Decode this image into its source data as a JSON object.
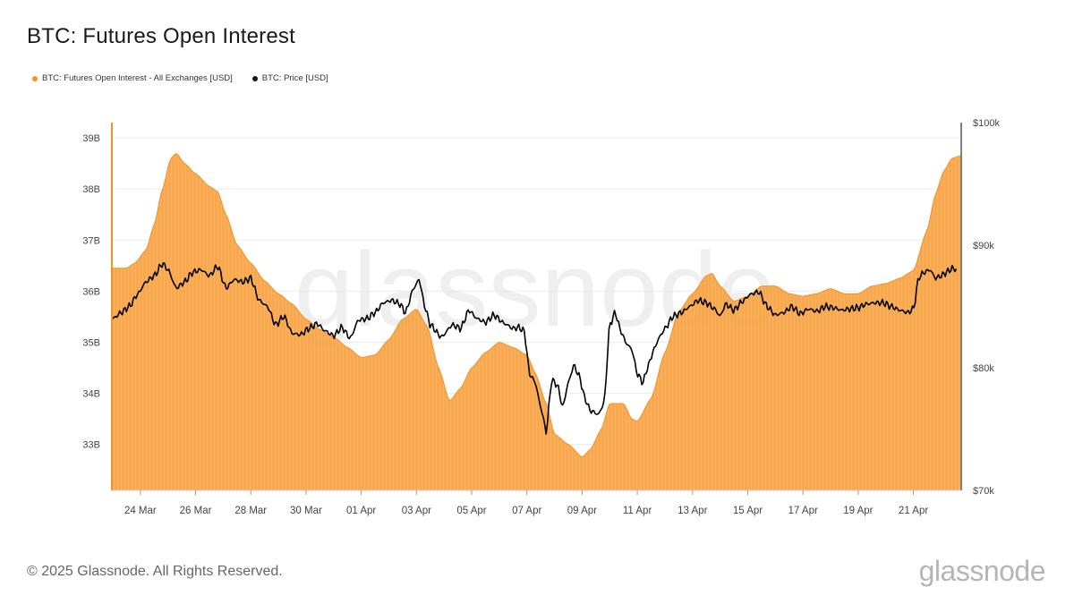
{
  "title": "BTC: Futures Open Interest",
  "legend": {
    "oi_label": "BTC: Futures Open Interest - All Exchanges [USD]",
    "price_label": "BTC: Price [USD]"
  },
  "footer": {
    "copyright": "© 2025 Glassnode. All Rights Reserved.",
    "logo": "glassnode"
  },
  "watermark": "glassnode",
  "colors": {
    "oi": "#f7a23e",
    "oi_edge": "#ef9228",
    "price": "#000000",
    "grid": "#ececec"
  },
  "chart_data": {
    "type": "area",
    "x_unit": "days",
    "x_start_label": "2025-03-23",
    "xlim": [
      0,
      30.7
    ],
    "x_ticks": [
      {
        "x": 1,
        "label": "24 Mar"
      },
      {
        "x": 3,
        "label": "26 Mar"
      },
      {
        "x": 5,
        "label": "28 Mar"
      },
      {
        "x": 7,
        "label": "30 Mar"
      },
      {
        "x": 9,
        "label": "01 Apr"
      },
      {
        "x": 11,
        "label": "03 Apr"
      },
      {
        "x": 13,
        "label": "05 Apr"
      },
      {
        "x": 15,
        "label": "07 Apr"
      },
      {
        "x": 17,
        "label": "09 Apr"
      },
      {
        "x": 19,
        "label": "11 Apr"
      },
      {
        "x": 21,
        "label": "13 Apr"
      },
      {
        "x": 23,
        "label": "15 Apr"
      },
      {
        "x": 25,
        "label": "17 Apr"
      },
      {
        "x": 27,
        "label": "19 Apr"
      },
      {
        "x": 29,
        "label": "21 Apr"
      }
    ],
    "y_left": {
      "label": "",
      "lim": [
        32.1,
        39.3
      ],
      "ticks": [
        33,
        34,
        35,
        36,
        37,
        38,
        39
      ],
      "tick_labels": [
        "33B",
        "34B",
        "35B",
        "36B",
        "37B",
        "38B",
        "39B"
      ]
    },
    "y_right": {
      "label": "",
      "lim": [
        70000,
        100000
      ],
      "ticks": [
        70000,
        80000,
        90000,
        100000
      ],
      "tick_labels": [
        "$70k",
        "$80k",
        "$90k",
        "$100k"
      ]
    },
    "series": [
      {
        "name": "BTC: Futures Open Interest - All Exchanges [USD]",
        "axis": "left",
        "type": "area",
        "unit": "B USD",
        "points": [
          [
            0,
            36.45
          ],
          [
            0.5,
            36.45
          ],
          [
            0.8,
            36.55
          ],
          [
            1.2,
            36.8
          ],
          [
            1.5,
            37.3
          ],
          [
            1.8,
            38.0
          ],
          [
            2.1,
            38.6
          ],
          [
            2.3,
            38.7
          ],
          [
            2.6,
            38.5
          ],
          [
            3.0,
            38.3
          ],
          [
            3.5,
            38.05
          ],
          [
            3.8,
            37.95
          ],
          [
            4.1,
            37.5
          ],
          [
            4.5,
            36.9
          ],
          [
            5.0,
            36.55
          ],
          [
            5.5,
            36.2
          ],
          [
            6.0,
            35.95
          ],
          [
            6.5,
            35.75
          ],
          [
            7.0,
            35.45
          ],
          [
            7.5,
            35.25
          ],
          [
            8.0,
            35.1
          ],
          [
            8.5,
            34.9
          ],
          [
            9.0,
            34.7
          ],
          [
            9.5,
            34.75
          ],
          [
            10.0,
            35.05
          ],
          [
            10.5,
            35.45
          ],
          [
            11.0,
            35.65
          ],
          [
            11.4,
            35.3
          ],
          [
            11.8,
            34.5
          ],
          [
            12.2,
            33.85
          ],
          [
            12.6,
            34.1
          ],
          [
            13.0,
            34.5
          ],
          [
            13.5,
            34.8
          ],
          [
            14.0,
            35.0
          ],
          [
            14.5,
            34.9
          ],
          [
            15.0,
            34.75
          ],
          [
            15.3,
            34.4
          ],
          [
            15.7,
            33.8
          ],
          [
            16.0,
            33.2
          ],
          [
            16.5,
            33.0
          ],
          [
            17.0,
            32.75
          ],
          [
            17.3,
            32.9
          ],
          [
            17.7,
            33.3
          ],
          [
            18.0,
            33.8
          ],
          [
            18.5,
            33.8
          ],
          [
            18.8,
            33.5
          ],
          [
            19.0,
            33.45
          ],
          [
            19.5,
            33.9
          ],
          [
            20.0,
            34.8
          ],
          [
            20.5,
            35.6
          ],
          [
            21.0,
            35.95
          ],
          [
            21.5,
            36.3
          ],
          [
            21.7,
            36.35
          ],
          [
            22.0,
            36.1
          ],
          [
            22.5,
            35.8
          ],
          [
            23.0,
            35.9
          ],
          [
            23.5,
            36.1
          ],
          [
            24.0,
            36.1
          ],
          [
            24.5,
            35.95
          ],
          [
            25.0,
            35.9
          ],
          [
            25.5,
            35.95
          ],
          [
            26.0,
            36.05
          ],
          [
            26.5,
            35.95
          ],
          [
            27.0,
            35.95
          ],
          [
            27.5,
            36.1
          ],
          [
            28.0,
            36.15
          ],
          [
            28.5,
            36.25
          ],
          [
            29.0,
            36.4
          ],
          [
            29.5,
            37.2
          ],
          [
            29.8,
            37.9
          ],
          [
            30.1,
            38.35
          ],
          [
            30.4,
            38.6
          ],
          [
            30.7,
            38.65
          ]
        ]
      },
      {
        "name": "BTC: Price [USD]",
        "axis": "right",
        "type": "line",
        "unit": "USD",
        "points": [
          [
            0,
            84000
          ],
          [
            0.3,
            84500
          ],
          [
            0.6,
            85000
          ],
          [
            0.9,
            86000
          ],
          [
            1.2,
            87000
          ],
          [
            1.5,
            87500
          ],
          [
            1.8,
            88500
          ],
          [
            2.0,
            88000
          ],
          [
            2.3,
            86500
          ],
          [
            2.6,
            87000
          ],
          [
            2.9,
            87800
          ],
          [
            3.2,
            88000
          ],
          [
            3.5,
            87500
          ],
          [
            3.8,
            88300
          ],
          [
            4.1,
            86500
          ],
          [
            4.4,
            87200
          ],
          [
            4.7,
            87000
          ],
          [
            5.0,
            87300
          ],
          [
            5.3,
            85500
          ],
          [
            5.6,
            85000
          ],
          [
            5.9,
            83500
          ],
          [
            6.2,
            84200
          ],
          [
            6.5,
            82800
          ],
          [
            6.8,
            82700
          ],
          [
            7.1,
            83200
          ],
          [
            7.4,
            83600
          ],
          [
            7.7,
            83000
          ],
          [
            8.0,
            82600
          ],
          [
            8.3,
            83300
          ],
          [
            8.6,
            82400
          ],
          [
            8.9,
            83900
          ],
          [
            9.2,
            84000
          ],
          [
            9.5,
            84500
          ],
          [
            9.8,
            85300
          ],
          [
            10.1,
            85500
          ],
          [
            10.4,
            85200
          ],
          [
            10.6,
            84500
          ],
          [
            10.9,
            86500
          ],
          [
            11.1,
            87200
          ],
          [
            11.3,
            85000
          ],
          [
            11.5,
            83500
          ],
          [
            11.9,
            82500
          ],
          [
            12.3,
            83500
          ],
          [
            12.6,
            83200
          ],
          [
            12.9,
            84700
          ],
          [
            13.2,
            84000
          ],
          [
            13.5,
            83700
          ],
          [
            13.8,
            84300
          ],
          [
            14.2,
            83600
          ],
          [
            14.5,
            83200
          ],
          [
            14.7,
            83300
          ],
          [
            14.9,
            83000
          ],
          [
            15.1,
            79500
          ],
          [
            15.3,
            78800
          ],
          [
            15.5,
            76800
          ],
          [
            15.7,
            74800
          ],
          [
            15.9,
            79000
          ],
          [
            16.1,
            78600
          ],
          [
            16.3,
            76800
          ],
          [
            16.5,
            78800
          ],
          [
            16.7,
            80200
          ],
          [
            16.9,
            79300
          ],
          [
            17.1,
            77500
          ],
          [
            17.3,
            76500
          ],
          [
            17.6,
            76200
          ],
          [
            17.8,
            77200
          ],
          [
            18.0,
            83500
          ],
          [
            18.2,
            84500
          ],
          [
            18.4,
            83000
          ],
          [
            18.6,
            82000
          ],
          [
            18.8,
            81500
          ],
          [
            19.0,
            79500
          ],
          [
            19.2,
            78800
          ],
          [
            19.4,
            80200
          ],
          [
            19.6,
            81500
          ],
          [
            19.8,
            82500
          ],
          [
            20.0,
            83200
          ],
          [
            20.3,
            84200
          ],
          [
            20.6,
            84500
          ],
          [
            20.9,
            85000
          ],
          [
            21.2,
            85500
          ],
          [
            21.5,
            85300
          ],
          [
            21.8,
            84800
          ],
          [
            22.0,
            84200
          ],
          [
            22.2,
            85200
          ],
          [
            22.5,
            84700
          ],
          [
            22.8,
            85400
          ],
          [
            23.1,
            86000
          ],
          [
            23.4,
            86200
          ],
          [
            23.7,
            85000
          ],
          [
            24.0,
            84300
          ],
          [
            24.3,
            84500
          ],
          [
            24.6,
            85000
          ],
          [
            24.9,
            84400
          ],
          [
            25.2,
            84800
          ],
          [
            25.5,
            84600
          ],
          [
            25.8,
            85000
          ],
          [
            26.1,
            84900
          ],
          [
            26.4,
            84700
          ],
          [
            26.7,
            84800
          ],
          [
            27.0,
            84900
          ],
          [
            27.3,
            85200
          ],
          [
            27.6,
            85300
          ],
          [
            27.9,
            85300
          ],
          [
            28.2,
            85000
          ],
          [
            28.5,
            84700
          ],
          [
            28.8,
            84500
          ],
          [
            29.0,
            84800
          ],
          [
            29.2,
            87400
          ],
          [
            29.4,
            87800
          ],
          [
            29.6,
            88000
          ],
          [
            29.8,
            87300
          ],
          [
            30.0,
            87500
          ],
          [
            30.2,
            87800
          ],
          [
            30.4,
            88100
          ],
          [
            30.6,
            88000
          ]
        ]
      }
    ],
    "grid": true,
    "legend_position": "top-left"
  }
}
